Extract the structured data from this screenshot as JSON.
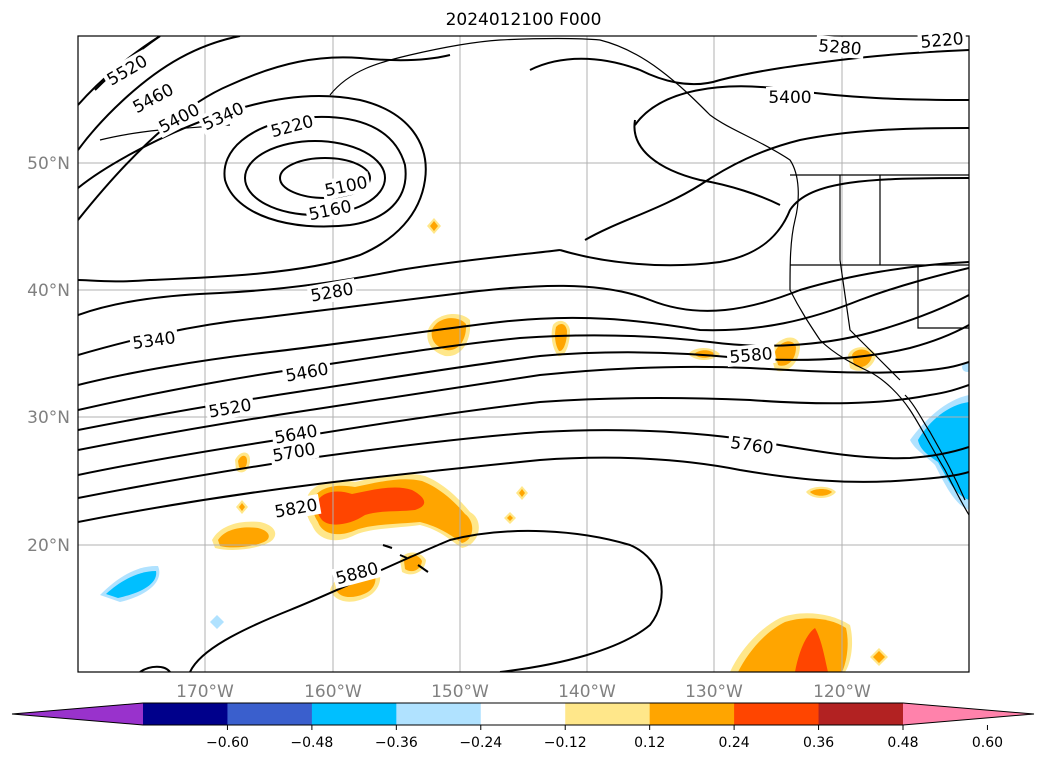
{
  "title": "2024012100 F000",
  "map": {
    "extent": {
      "lon_min": -180,
      "lon_max": -110,
      "lat_min": 10,
      "lat_max": 60
    },
    "gridlines": true,
    "lon_labels": [
      "170°W",
      "160°W",
      "150°W",
      "140°W",
      "130°W",
      "120°W"
    ],
    "lon_values": [
      -170,
      -160,
      -150,
      -140,
      -130,
      -120
    ],
    "lat_labels": [
      "50°N",
      "40°N",
      "30°N",
      "20°N"
    ],
    "lat_values": [
      50,
      40,
      30,
      20
    ]
  },
  "contours": {
    "color": "#000000",
    "labels": [
      "5520",
      "5460",
      "5400",
      "5340",
      "5220",
      "5100",
      "5160",
      "5280",
      "5220",
      "5400",
      "5280",
      "5340",
      "5460",
      "5520",
      "5640",
      "5700",
      "5820",
      "5880",
      "5580",
      "5760"
    ]
  },
  "colorbar": {
    "ticks": [
      "−0.60",
      "−0.48",
      "−0.36",
      "−0.24",
      "−0.12",
      "0.12",
      "0.24",
      "0.36",
      "0.48",
      "0.60"
    ],
    "colors": [
      "#9932cc",
      "#00008b",
      "#3a5fcd",
      "#00bfff",
      "#b0e2ff",
      "#ffffff",
      "#ffe78a",
      "#ffa500",
      "#ff4500",
      "#b22222",
      "#ff82ab"
    ]
  }
}
